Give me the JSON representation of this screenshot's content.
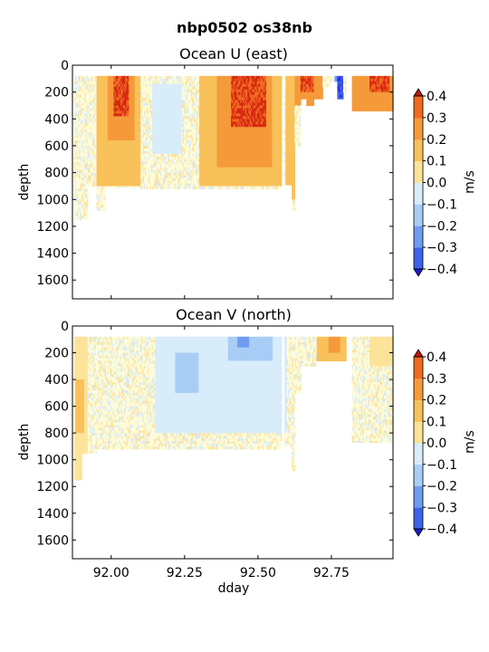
{
  "figure_title": "nbp0502 os38nb",
  "colors": {
    "levels": [
      "#2a2ee8",
      "#3c63e8",
      "#6f9cf0",
      "#a8cdf6",
      "#d8ecfa",
      "#fdfbd8",
      "#fde39a",
      "#f9c15a",
      "#f59a3a",
      "#ef6a22",
      "#d92a12"
    ],
    "under": "#1a1ad0",
    "over": "#c01808"
  },
  "chart_data": [
    {
      "type": "heatmap",
      "title": "Ocean U (east)",
      "xlabel": "",
      "ylabel": "depth",
      "xlim": [
        91.868,
        92.96
      ],
      "ylim": [
        1740,
        0
      ],
      "yticks": [
        0,
        200,
        400,
        600,
        800,
        1000,
        1200,
        1400,
        1600
      ],
      "xticks": [
        92.0,
        92.25,
        92.5,
        92.75
      ],
      "colorbar": {
        "label": "m/s",
        "ticks": [
          "0.4",
          "0.3",
          "0.2",
          "0.1",
          "0.0",
          "−0.1",
          "−0.2",
          "−0.3",
          "−0.4"
        ],
        "levels": [
          -0.4,
          -0.3,
          -0.2,
          -0.1,
          0.0,
          0.1,
          0.2,
          0.3,
          0.4
        ]
      },
      "coverage": [
        {
          "x": [
            91.868,
            91.875
          ],
          "depth_max": 0
        },
        {
          "x": [
            91.875,
            91.92
          ],
          "depth_max": 1150
        },
        {
          "x": [
            91.92,
            91.95
          ],
          "depth_max": 900
        },
        {
          "x": [
            91.95,
            91.98
          ],
          "depth_max": 1080
        },
        {
          "x": [
            91.98,
            92.1
          ],
          "depth_max": 910
        },
        {
          "x": [
            92.1,
            92.58
          ],
          "depth_max": 920
        },
        {
          "x": [
            92.58,
            92.59
          ],
          "depth_max": 0
        },
        {
          "x": [
            92.59,
            92.615
          ],
          "depth_max": 890
        },
        {
          "x": [
            92.615,
            92.625
          ],
          "depth_max": 1080
        },
        {
          "x": [
            92.625,
            92.645
          ],
          "depth_max": 600
        },
        {
          "x": [
            92.645,
            92.665
          ],
          "depth_max": 250
        },
        {
          "x": [
            92.665,
            92.69
          ],
          "depth_max": 300
        },
        {
          "x": [
            92.69,
            92.72
          ],
          "depth_max": 250
        },
        {
          "x": [
            92.72,
            92.745
          ],
          "depth_max": 160
        },
        {
          "x": [
            92.745,
            92.77
          ],
          "depth_max": 120
        },
        {
          "x": [
            92.77,
            92.79
          ],
          "depth_max": 250
        },
        {
          "x": [
            92.79,
            92.8
          ],
          "depth_max": 200
        },
        {
          "x": [
            92.8,
            92.82
          ],
          "depth_max": 0
        },
        {
          "x": [
            92.82,
            92.96
          ],
          "depth_max": 340
        }
      ],
      "features": [
        {
          "x": [
            91.95,
            92.1
          ],
          "depth": [
            80,
            900
          ],
          "value": 0.2
        },
        {
          "x": [
            91.99,
            92.08
          ],
          "depth": [
            80,
            550
          ],
          "value": 0.3
        },
        {
          "x": [
            92.01,
            92.06
          ],
          "depth": [
            80,
            380
          ],
          "value": 0.4
        },
        {
          "x": [
            92.3,
            92.58
          ],
          "depth": [
            80,
            900
          ],
          "value": 0.2
        },
        {
          "x": [
            92.36,
            92.55
          ],
          "depth": [
            80,
            750
          ],
          "value": 0.3
        },
        {
          "x": [
            92.41,
            92.53
          ],
          "depth": [
            80,
            450
          ],
          "value": 0.4
        },
        {
          "x": [
            92.14,
            92.24
          ],
          "depth": [
            150,
            650
          ],
          "value": -0.1
        },
        {
          "x": [
            92.595,
            92.625
          ],
          "depth": [
            80,
            1000
          ],
          "value": 0.2
        },
        {
          "x": [
            92.625,
            92.72
          ],
          "depth": [
            80,
            300
          ],
          "value": 0.3
        },
        {
          "x": [
            92.645,
            92.69
          ],
          "depth": [
            80,
            200
          ],
          "value": 0.4
        },
        {
          "x": [
            92.77,
            92.79
          ],
          "depth": [
            80,
            250
          ],
          "value": -0.4
        },
        {
          "x": [
            92.76,
            92.77
          ],
          "depth": [
            80,
            200
          ],
          "value": -0.3
        },
        {
          "x": [
            92.82,
            92.96
          ],
          "depth": [
            80,
            340
          ],
          "value": 0.3
        },
        {
          "x": [
            92.88,
            92.95
          ],
          "depth": [
            80,
            200
          ],
          "value": 0.4
        }
      ]
    },
    {
      "type": "heatmap",
      "title": "Ocean V (north)",
      "xlabel": "dday",
      "ylabel": "depth",
      "xlim": [
        91.868,
        92.96
      ],
      "ylim": [
        1740,
        0
      ],
      "yticks": [
        0,
        200,
        400,
        600,
        800,
        1000,
        1200,
        1400,
        1600
      ],
      "xticks": [
        92.0,
        92.25,
        92.5,
        92.75
      ],
      "xticklabels": [
        "92.00",
        "92.25",
        "92.50",
        "92.75"
      ],
      "colorbar": {
        "label": "m/s",
        "ticks": [
          "0.4",
          "0.3",
          "0.2",
          "0.1",
          "0.0",
          "−0.1",
          "−0.2",
          "−0.3",
          "−0.4"
        ],
        "levels": [
          -0.4,
          -0.3,
          -0.2,
          -0.1,
          0.0,
          0.1,
          0.2,
          0.3,
          0.4
        ]
      },
      "coverage": [
        {
          "x": [
            91.868,
            91.875
          ],
          "depth_max": 0
        },
        {
          "x": [
            91.875,
            91.9
          ],
          "depth_max": 1150
        },
        {
          "x": [
            91.9,
            91.95
          ],
          "depth_max": 950
        },
        {
          "x": [
            91.95,
            92.58
          ],
          "depth_max": 920
        },
        {
          "x": [
            92.58,
            92.59
          ],
          "depth_max": 0
        },
        {
          "x": [
            92.59,
            92.615
          ],
          "depth_max": 900
        },
        {
          "x": [
            92.615,
            92.625
          ],
          "depth_max": 1080
        },
        {
          "x": [
            92.625,
            92.645
          ],
          "depth_max": 500
        },
        {
          "x": [
            92.645,
            92.7
          ],
          "depth_max": 300
        },
        {
          "x": [
            92.7,
            92.8
          ],
          "depth_max": 260
        },
        {
          "x": [
            92.8,
            92.82
          ],
          "depth_max": 0
        },
        {
          "x": [
            92.82,
            92.96
          ],
          "depth_max": 870
        }
      ],
      "features": [
        {
          "x": [
            91.875,
            91.92
          ],
          "depth": [
            80,
            1150
          ],
          "value": 0.1
        },
        {
          "x": [
            91.88,
            91.91
          ],
          "depth": [
            400,
            800
          ],
          "value": 0.2
        },
        {
          "x": [
            92.15,
            92.6
          ],
          "depth": [
            80,
            800
          ],
          "value": -0.1
        },
        {
          "x": [
            92.22,
            92.3
          ],
          "depth": [
            200,
            500
          ],
          "value": -0.2
        },
        {
          "x": [
            92.4,
            92.55
          ],
          "depth": [
            80,
            250
          ],
          "value": -0.2
        },
        {
          "x": [
            92.43,
            92.47
          ],
          "depth": [
            80,
            150
          ],
          "value": -0.3
        },
        {
          "x": [
            92.7,
            92.8
          ],
          "depth": [
            80,
            250
          ],
          "value": 0.2
        },
        {
          "x": [
            92.74,
            92.78
          ],
          "depth": [
            80,
            200
          ],
          "value": 0.3
        },
        {
          "x": [
            92.88,
            92.96
          ],
          "depth": [
            80,
            300
          ],
          "value": 0.1
        }
      ]
    }
  ]
}
